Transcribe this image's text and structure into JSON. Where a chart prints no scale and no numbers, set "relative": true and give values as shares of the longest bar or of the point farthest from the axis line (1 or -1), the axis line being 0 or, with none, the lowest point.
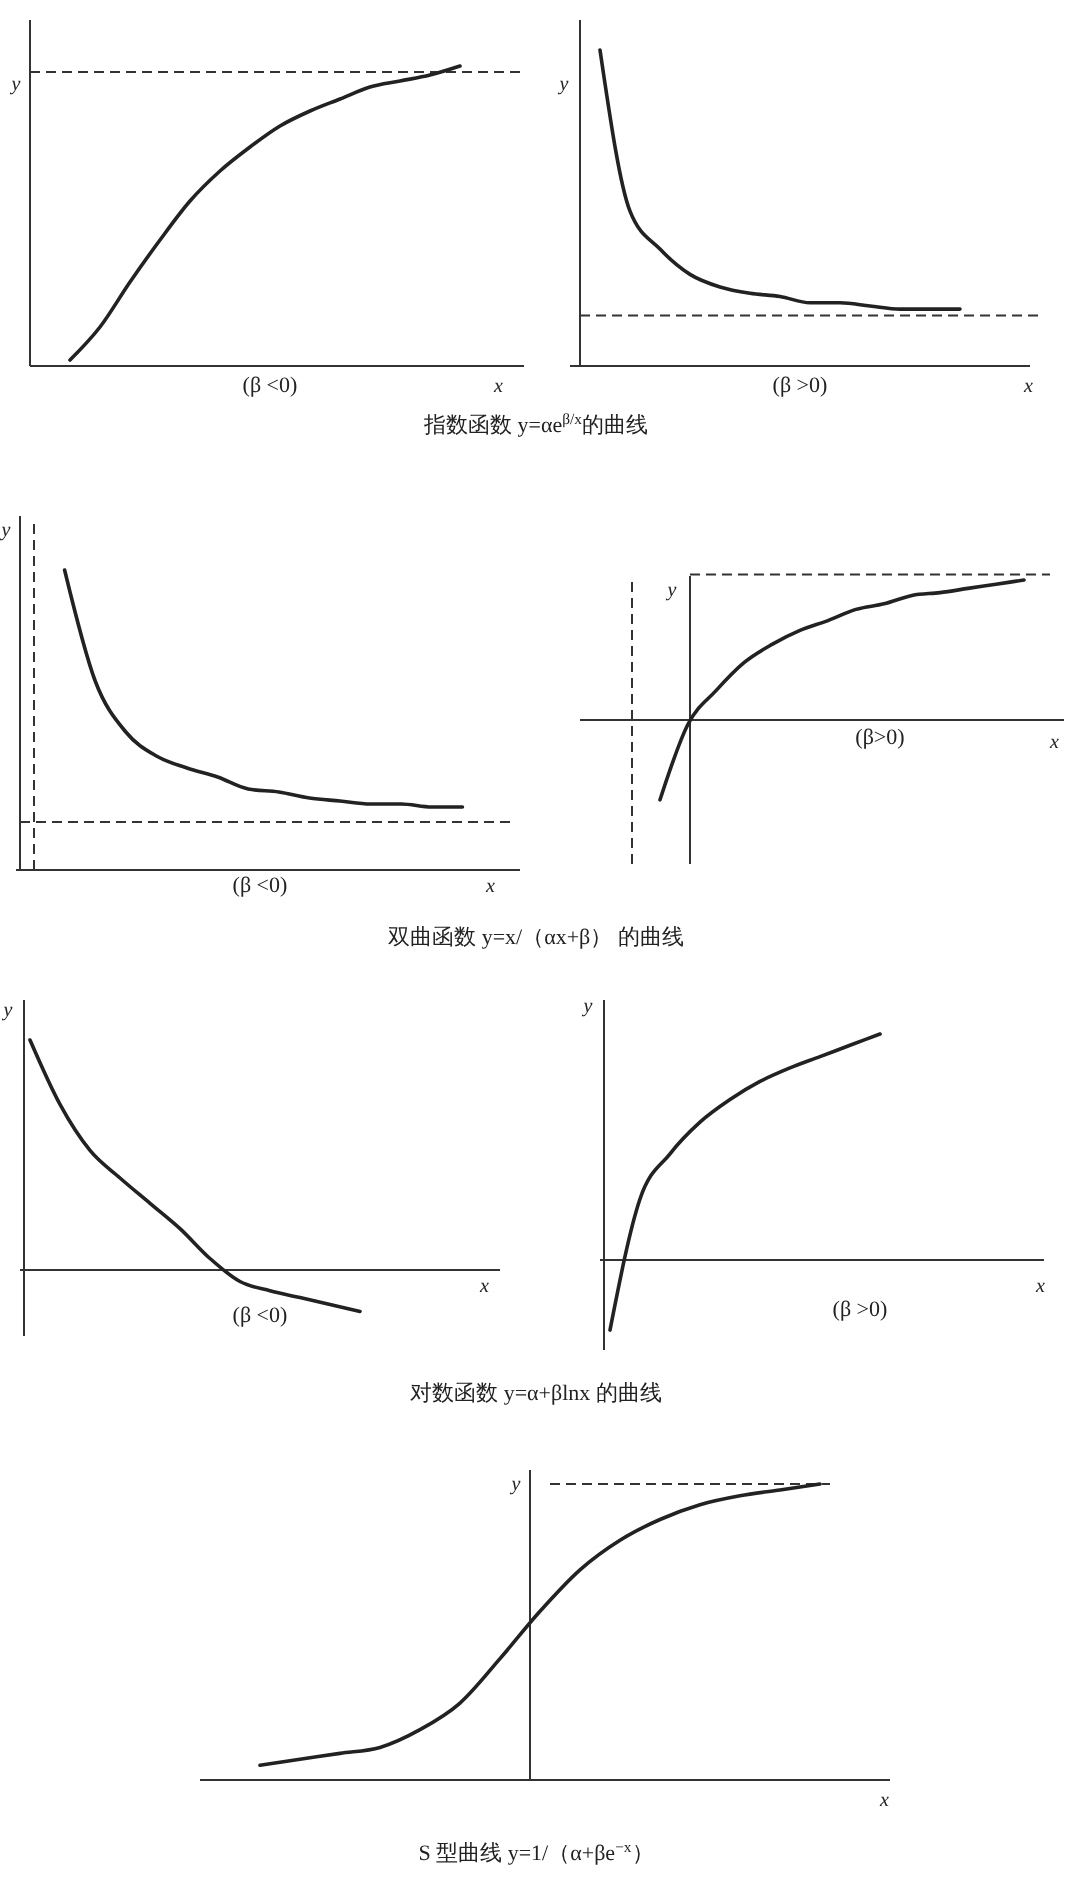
{
  "chart_data": [
    {
      "type": "line",
      "relative": true,
      "categories": [
        null,
        null,
        null,
        null,
        null,
        null,
        null,
        null,
        null,
        null,
        null,
        null,
        null,
        null,
        null,
        null
      ],
      "values": [
        0.02,
        0.13,
        0.28,
        0.42,
        0.55,
        0.65,
        0.73,
        0.8,
        0.85,
        0.89,
        0.93,
        0.95,
        0.97,
        1,
        null,
        null
      ],
      "color": "#222222",
      "xlabel": "x",
      "ylabel": "y",
      "ref_lines": [
        {
          "axis": "y",
          "value": 0.98,
          "line_style": "dashed"
        }
      ],
      "annotations": [
        "(β <0)",
        "指数函数 y=αe$^{β/x}$的曲线"
      ]
    },
    {
      "type": "line",
      "relative": true,
      "categories": [
        null,
        null,
        null,
        null,
        null,
        null,
        null,
        null,
        null,
        null,
        null,
        null,
        null,
        null,
        null
      ],
      "values": [
        1,
        0.49,
        0.37,
        0.29,
        0.25,
        0.23,
        0.22,
        0.2,
        0.2,
        0.19,
        0.18,
        0.18,
        0.18,
        null,
        null
      ],
      "color": "#222222",
      "xlabel": "x",
      "ylabel": "y",
      "ref_lines": [
        {
          "axis": "y",
          "value": 0.16,
          "line_style": "dashed"
        }
      ],
      "annotations": [
        "(β >0)"
      ]
    },
    {
      "type": "line",
      "relative": true,
      "categories": [
        null,
        null,
        null,
        null,
        null,
        null,
        null,
        null,
        null,
        null,
        null,
        null,
        null,
        null,
        null,
        null
      ],
      "values": [
        null,
        1,
        0.63,
        0.46,
        0.38,
        0.34,
        0.31,
        0.27,
        0.26,
        0.24,
        0.23,
        0.22,
        0.22,
        0.21,
        0.21,
        null
      ],
      "color": "#222222",
      "xlabel": "x",
      "ylabel": "y",
      "ref_lines": [
        {
          "axis": "y",
          "value": 0.16,
          "line_style": "dashed"
        }
      ],
      "annotations": [
        "(β <0)",
        "双曲函数 y=x/（αx+β） 的曲线"
      ]
    },
    {
      "type": "line",
      "relative": true,
      "categories": [
        null,
        null,
        null,
        null,
        null,
        null,
        null,
        null,
        null,
        null,
        null,
        null,
        null,
        null,
        null,
        null
      ],
      "values": [
        null,
        -0.57,
        -0.03,
        0.21,
        0.41,
        0.54,
        0.64,
        0.71,
        0.79,
        0.83,
        0.89,
        0.91,
        0.94,
        0.97,
        1,
        null
      ],
      "color": "#222222",
      "xlabel": "x",
      "ylabel": "y",
      "ref_lines": [
        {
          "axis": "y",
          "value": 1.04,
          "line_style": "dashed"
        }
      ],
      "annotations": [
        "(β>0)"
      ]
    },
    {
      "type": "line",
      "relative": true,
      "categories": [
        null,
        null,
        null,
        null,
        null,
        null,
        null,
        null,
        null,
        null,
        null,
        null,
        null,
        null,
        null,
        null
      ],
      "values": [
        1,
        0.72,
        0.52,
        0.4,
        0.29,
        0.18,
        0.05,
        -0.05,
        -0.09,
        -0.12,
        -0.15,
        -0.18,
        null,
        null,
        null,
        null
      ],
      "color": "#222222",
      "xlabel": "x",
      "ylabel": "y",
      "annotations": [
        "(β <0)",
        "对数函数 y=α+βlnx 的曲线"
      ]
    },
    {
      "type": "line",
      "relative": true,
      "categories": [
        null,
        null,
        null,
        null,
        null,
        null,
        null,
        null,
        null,
        null,
        null,
        null,
        null,
        null,
        null
      ],
      "values": [
        -0.31,
        0.27,
        0.47,
        0.61,
        0.71,
        0.79,
        0.85,
        0.9,
        0.95,
        1,
        null,
        null,
        null,
        null,
        null
      ],
      "color": "#222222",
      "xlabel": "x",
      "ylabel": "y",
      "annotations": [
        "(β >0)"
      ]
    },
    {
      "type": "line",
      "relative": true,
      "categories": [
        null,
        null,
        null,
        null,
        null,
        null,
        null,
        null,
        null,
        null,
        null,
        null,
        null,
        null,
        null
      ],
      "values": [
        0.05,
        0.07,
        0.09,
        0.11,
        0.17,
        0.26,
        0.41,
        0.57,
        0.71,
        0.81,
        0.88,
        0.93,
        0.96,
        0.98,
        1
      ],
      "color": "#222222",
      "xlabel": "x",
      "ylabel": "y",
      "ref_lines": [
        {
          "axis": "y",
          "value": 1,
          "line_style": "dashed"
        }
      ],
      "annotations": [
        "S 型曲线 y=1/（α+βe$^{−x}$）"
      ]
    }
  ]
}
